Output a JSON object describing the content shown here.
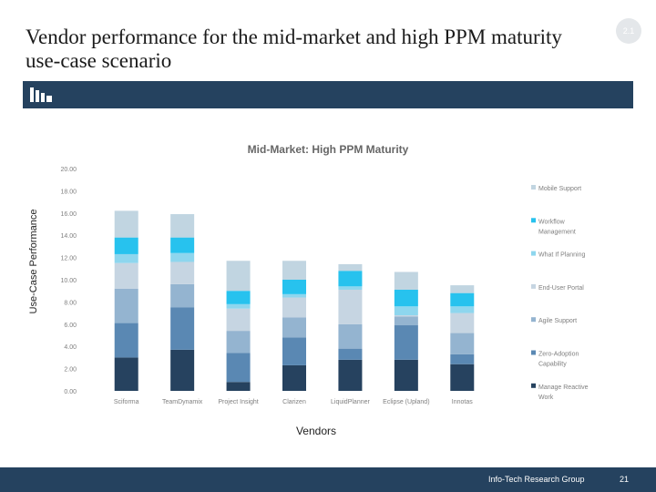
{
  "slide": {
    "title": "Vendor performance for the mid-market and high PPM maturity use-case scenario",
    "section_badge": "2.1",
    "footer_org": "Info-Tech Research Group",
    "page_number": "21"
  },
  "colors": {
    "banner": "#25425f",
    "footer": "#25425f",
    "series": [
      "#26425f",
      "#5a88b3",
      "#94b4d0",
      "#c6d5e2",
      "#8ed6ee",
      "#27c2ee",
      "#c1d5e1"
    ]
  },
  "chart_data": {
    "type": "bar",
    "stacked": true,
    "title": "Mid-Market: High PPM Maturity",
    "xlabel": "Vendors",
    "ylabel": "Use-Case Performance",
    "ylim": [
      0,
      20
    ],
    "yticks": [
      "0.00",
      "2.00",
      "4.00",
      "6.00",
      "8.00",
      "10.00",
      "12.00",
      "14.00",
      "16.00",
      "18.00",
      "20.00"
    ],
    "grid": false,
    "legend_position": "right",
    "categories": [
      "Sciforma",
      "TeamDynamix",
      "Project Insight",
      "Clarizen",
      "LiquidPlanner",
      "Eclipse (Upland)",
      "Innotas"
    ],
    "series": [
      {
        "name": "Manage Reactive Work",
        "values": [
          3.0,
          3.7,
          0.8,
          2.3,
          2.8,
          2.8,
          2.4
        ]
      },
      {
        "name": "Zero-Adoption Capability",
        "values": [
          3.1,
          3.8,
          2.6,
          2.5,
          1.0,
          3.1,
          0.9
        ]
      },
      {
        "name": "Agile Support",
        "values": [
          3.1,
          2.1,
          2.0,
          1.8,
          2.2,
          0.8,
          1.9
        ]
      },
      {
        "name": "End-User Portal",
        "values": [
          2.3,
          2.0,
          2.0,
          1.8,
          3.1,
          0.1,
          1.8
        ]
      },
      {
        "name": "What If Planning",
        "values": [
          0.8,
          0.8,
          0.4,
          0.3,
          0.3,
          0.8,
          0.6
        ]
      },
      {
        "name": "Workflow Management",
        "values": [
          1.5,
          1.4,
          1.2,
          1.3,
          1.4,
          1.5,
          1.2
        ]
      },
      {
        "name": "Mobile Support",
        "values": [
          2.4,
          2.1,
          2.7,
          1.7,
          0.6,
          1.6,
          0.7
        ]
      }
    ]
  }
}
